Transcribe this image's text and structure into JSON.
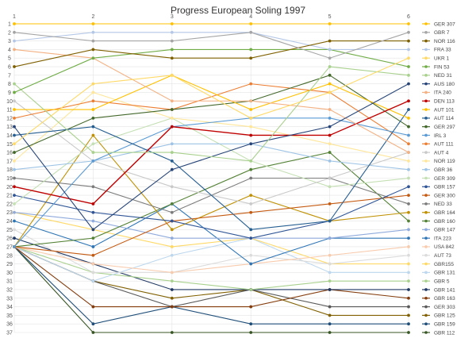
{
  "chart_data": {
    "type": "line",
    "title": "Progress European Soling 1997",
    "x": [
      1,
      2,
      3,
      4,
      5,
      6
    ],
    "y_ticks": [
      1,
      2,
      3,
      4,
      5,
      6,
      7,
      8,
      9,
      10,
      11,
      12,
      13,
      14,
      15,
      16,
      17,
      18,
      19,
      20,
      21,
      22,
      23,
      24,
      25,
      26,
      27,
      28,
      29,
      30,
      31,
      32,
      33,
      34,
      35,
      36,
      37
    ],
    "ylim": [
      1,
      37
    ],
    "y_inverted": true,
    "grid": true,
    "legend_position": "right",
    "series": [
      {
        "name": "GER 307",
        "color": "#ffc000",
        "values": [
          1,
          1,
          1,
          1,
          1,
          1
        ]
      },
      {
        "name": "GBR 7",
        "color": "#a5a5a5",
        "values": [
          2,
          3,
          3,
          2,
          5,
          2
        ]
      },
      {
        "name": "NOR 116",
        "color": "#7f6000",
        "values": [
          6,
          4,
          5,
          5,
          3,
          3
        ]
      },
      {
        "name": "FRA 33",
        "color": "#b4c7e7",
        "values": [
          3,
          2,
          2,
          2,
          4,
          4
        ]
      },
      {
        "name": "UKR 1",
        "color": "#ffd966",
        "values": [
          15,
          8,
          7,
          12,
          9,
          5
        ]
      },
      {
        "name": "FIN 53",
        "color": "#70ad47",
        "values": [
          9,
          5,
          4,
          4,
          4,
          6
        ]
      },
      {
        "name": "NED 31",
        "color": "#a9d18e",
        "values": [
          8,
          16,
          16,
          17,
          6,
          7
        ]
      },
      {
        "name": "AUS 180",
        "color": "#264478",
        "values": [
          13,
          25,
          18,
          15,
          13,
          8
        ]
      },
      {
        "name": "ITA 240",
        "color": "#f4b183",
        "values": [
          4,
          5,
          10,
          10,
          11,
          16
        ]
      },
      {
        "name": "DEN 113",
        "color": "#c00000",
        "values": [
          20,
          22,
          13,
          14,
          14,
          10
        ]
      },
      {
        "name": "AUT 101",
        "color": "#ffc000",
        "values": [
          11,
          11,
          7,
          11,
          8,
          12
        ]
      },
      {
        "name": "AUT 114",
        "color": "#255e91",
        "values": [
          14,
          13,
          17,
          25,
          24,
          11
        ]
      },
      {
        "name": "GER 297",
        "color": "#43682b",
        "values": [
          16,
          12,
          11,
          10,
          7,
          13
        ]
      },
      {
        "name": "IRL 3",
        "color": "#5b9bd5",
        "values": [
          27,
          17,
          13,
          12,
          12,
          14
        ]
      },
      {
        "name": "AUT 111",
        "color": "#ed7d31",
        "values": [
          12,
          10,
          11,
          8,
          9,
          15
        ]
      },
      {
        "name": "AUT 4",
        "color": "#c9c9c9",
        "values": [
          10,
          17,
          20,
          22,
          19,
          16
        ]
      },
      {
        "name": "NOR 119",
        "color": "#ffe699",
        "values": [
          17,
          9,
          12,
          13,
          15,
          17
        ]
      },
      {
        "name": "GBR 36",
        "color": "#9dc3e6",
        "values": [
          18,
          17,
          15,
          15,
          17,
          18
        ]
      },
      {
        "name": "GER 309",
        "color": "#c5e0b4",
        "values": [
          22,
          15,
          12,
          17,
          20,
          19
        ]
      },
      {
        "name": "GBR 157",
        "color": "#2f5597",
        "values": [
          21,
          23,
          24,
          26,
          24,
          20
        ]
      },
      {
        "name": "GER 300",
        "color": "#c55a11",
        "values": [
          27,
          28,
          24,
          23,
          22,
          21
        ]
      },
      {
        "name": "NED 33",
        "color": "#7b7b7b",
        "values": [
          19,
          20,
          23,
          19,
          19,
          22
        ]
      },
      {
        "name": "GBR 164",
        "color": "#bf9000",
        "values": [
          27,
          14,
          25,
          21,
          24,
          23
        ]
      },
      {
        "name": "GBR 160",
        "color": "#548235",
        "values": [
          27,
          26,
          22,
          18,
          16,
          24
        ]
      },
      {
        "name": "GBR 147",
        "color": "#8faadc",
        "values": [
          23,
          24,
          26,
          26,
          26,
          25
        ]
      },
      {
        "name": "ITA 223",
        "color": "#2e75b6",
        "values": [
          24,
          27,
          22,
          29,
          26,
          26
        ]
      },
      {
        "name": "USA 842",
        "color": "#f8cbad",
        "values": [
          27,
          29,
          30,
          29,
          28,
          27
        ]
      },
      {
        "name": "AUT 73",
        "color": "#dbdbdb",
        "values": [
          25,
          30,
          30,
          28,
          29,
          28
        ]
      },
      {
        "name": "GBR155",
        "color": "#ffd966",
        "values": [
          23,
          25,
          27,
          26,
          29,
          29
        ]
      },
      {
        "name": "GBR 131",
        "color": "#bdd7ee",
        "values": [
          27,
          31,
          28,
          26,
          30,
          30
        ]
      },
      {
        "name": "GBR 5",
        "color": "#a9d18e",
        "values": [
          27,
          30,
          31,
          32,
          31,
          31
        ]
      },
      {
        "name": "GBR 141",
        "color": "#1f3864",
        "values": [
          26,
          29,
          32,
          32,
          32,
          32
        ]
      },
      {
        "name": "GBR 163",
        "color": "#843c0c",
        "values": [
          27,
          34,
          34,
          34,
          32,
          33
        ]
      },
      {
        "name": "GER 303",
        "color": "#595959",
        "values": [
          27,
          31,
          34,
          32,
          34,
          34
        ]
      },
      {
        "name": "GBR 125",
        "color": "#806000",
        "values": [
          27,
          31,
          33,
          32,
          35,
          35
        ]
      },
      {
        "name": "GBR 159",
        "color": "#1f4e79",
        "values": [
          27,
          36,
          34,
          36,
          36,
          36
        ]
      },
      {
        "name": "GBR 112",
        "color": "#375623",
        "values": [
          27,
          37,
          37,
          37,
          37,
          37
        ]
      }
    ]
  }
}
